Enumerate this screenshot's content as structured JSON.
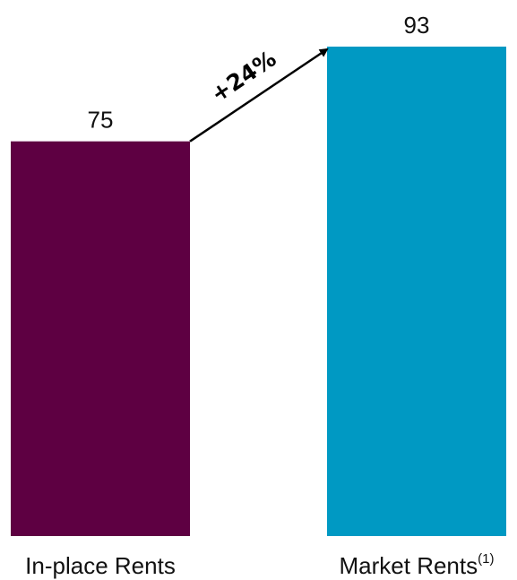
{
  "chart_data": {
    "type": "bar",
    "categories": [
      "In-place Rents",
      "Market Rents"
    ],
    "category_footnotes": [
      "",
      "(1)"
    ],
    "values": [
      75,
      93
    ],
    "data_labels": [
      "75",
      "93"
    ],
    "colors": [
      "#5e0042",
      "#0099c3"
    ],
    "annotation": {
      "text": "+24%",
      "from_category": "In-place Rents",
      "to_category": "Market Rents",
      "style": "arrow"
    },
    "ylim": [
      0,
      93
    ],
    "grid": false,
    "legend": "none"
  }
}
